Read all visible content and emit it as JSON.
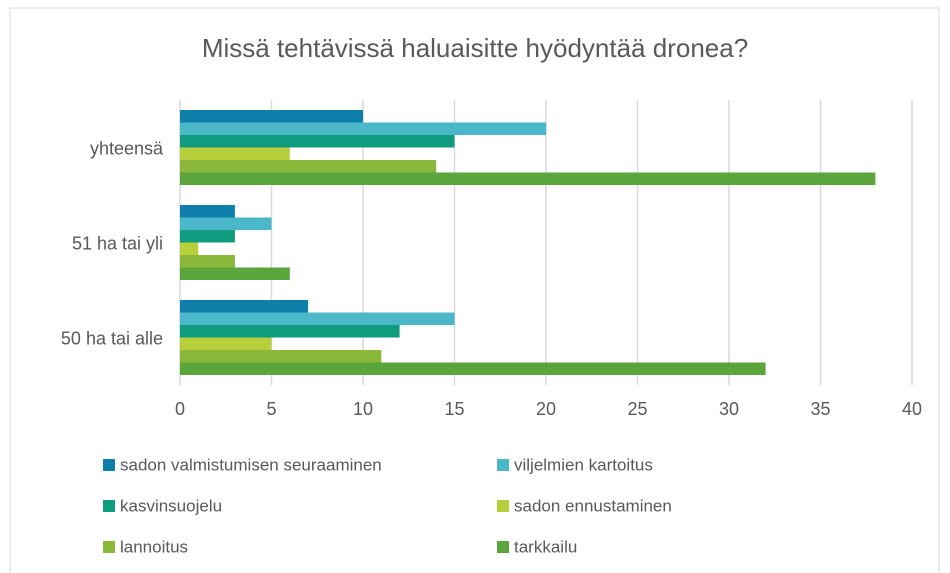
{
  "chart_data": {
    "type": "barh",
    "title": "Missä tehtävissä haluaisitte hyödyntää dronea?",
    "categories": [
      "yhteensä",
      "51 ha tai yli",
      "50 ha tai alle"
    ],
    "series": [
      {
        "name": "sadon valmistumisen seuraaminen",
        "color": "#0e7fab",
        "values": [
          10,
          3,
          7
        ]
      },
      {
        "name": "viljelmien kartoitus",
        "color": "#4bb8c9",
        "values": [
          20,
          5,
          15
        ]
      },
      {
        "name": "kasvinsuojelu",
        "color": "#0e9b7e",
        "values": [
          15,
          3,
          12
        ]
      },
      {
        "name": "sadon ennustaminen",
        "color": "#b7cf3a",
        "values": [
          6,
          1,
          5
        ]
      },
      {
        "name": "lannoitus",
        "color": "#8ab83a",
        "values": [
          14,
          3,
          11
        ]
      },
      {
        "name": "tarkkailu",
        "color": "#5aa53c",
        "values": [
          38,
          6,
          32
        ]
      }
    ],
    "xlim": [
      0,
      40
    ],
    "xticks": [
      0,
      5,
      10,
      15,
      20,
      25,
      30,
      35,
      40
    ],
    "grid": true
  }
}
